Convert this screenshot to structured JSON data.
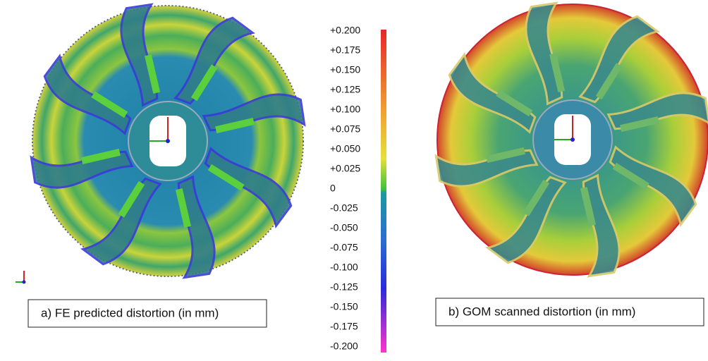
{
  "colorbar": {
    "labels": [
      "+0.200",
      "+0.175",
      "+0.150",
      "+0.125",
      "+0.100",
      "+0.075",
      "+0.050",
      "+0.025",
      "0",
      "-0.025",
      "-0.050",
      "-0.075",
      "-0.100",
      "-0.125",
      "-0.150",
      "-0.175",
      "-0.200"
    ]
  },
  "panels": [
    {
      "caption": "a)  FE predicted distortion (in mm)"
    },
    {
      "caption": "b)  GOM scanned distortion (in mm)"
    }
  ]
}
